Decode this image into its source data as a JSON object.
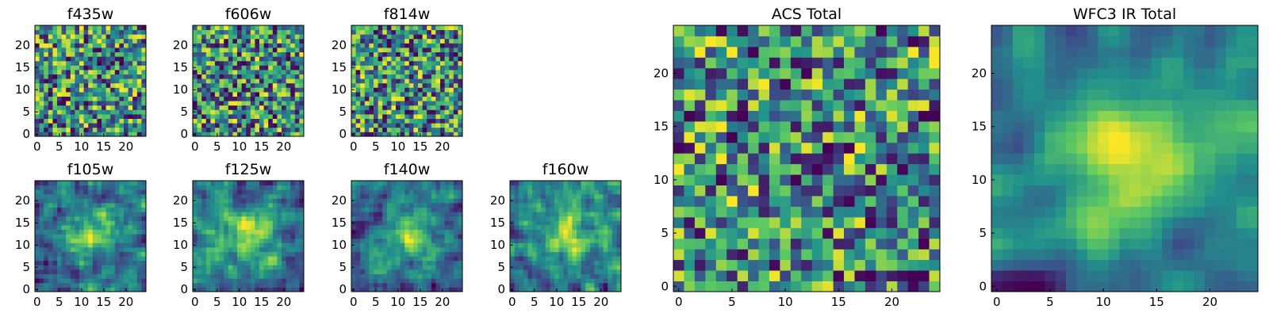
{
  "figure": {
    "background": "#ffffff",
    "colormap": [
      "#440154",
      "#3b528b",
      "#21918c",
      "#5ec962",
      "#fde725"
    ]
  },
  "chart_data": [
    {
      "type": "heatmap",
      "title": "f435w",
      "size": 25,
      "seed": 11,
      "smooth": 0,
      "xticks": [
        0,
        5,
        10,
        15,
        20
      ],
      "yticks": [
        0,
        5,
        10,
        15,
        20
      ],
      "xlim": [
        0,
        24
      ],
      "ylim": [
        0,
        24
      ]
    },
    {
      "type": "heatmap",
      "title": "f606w",
      "size": 25,
      "seed": 23,
      "smooth": 0,
      "xticks": [
        0,
        5,
        10,
        15,
        20
      ],
      "yticks": [
        0,
        5,
        10,
        15,
        20
      ],
      "xlim": [
        0,
        24
      ],
      "ylim": [
        0,
        24
      ]
    },
    {
      "type": "heatmap",
      "title": "f814w",
      "size": 25,
      "seed": 37,
      "smooth": 0,
      "xticks": [
        0,
        5,
        10,
        15,
        20
      ],
      "yticks": [
        0,
        5,
        10,
        15,
        20
      ],
      "xlim": [
        0,
        24
      ],
      "ylim": [
        0,
        24
      ]
    },
    {
      "type": "heatmap",
      "title": "f105w",
      "size": 25,
      "seed": 41,
      "smooth": 1,
      "xticks": [
        0,
        5,
        10,
        15,
        20
      ],
      "yticks": [
        0,
        5,
        10,
        15,
        20
      ],
      "xlim": [
        0,
        24
      ],
      "ylim": [
        0,
        24
      ]
    },
    {
      "type": "heatmap",
      "title": "f125w",
      "size": 25,
      "seed": 53,
      "smooth": 1,
      "xticks": [
        0,
        5,
        10,
        15,
        20
      ],
      "yticks": [
        0,
        5,
        10,
        15,
        20
      ],
      "xlim": [
        0,
        24
      ],
      "ylim": [
        0,
        24
      ]
    },
    {
      "type": "heatmap",
      "title": "f140w",
      "size": 25,
      "seed": 67,
      "smooth": 1,
      "xticks": [
        0,
        5,
        10,
        15,
        20
      ],
      "yticks": [
        0,
        5,
        10,
        15,
        20
      ],
      "xlim": [
        0,
        24
      ],
      "ylim": [
        0,
        24
      ]
    },
    {
      "type": "heatmap",
      "title": "f160w",
      "size": 25,
      "seed": 79,
      "smooth": 1,
      "xticks": [
        0,
        5,
        10,
        15,
        20
      ],
      "yticks": [
        0,
        5,
        10,
        15,
        20
      ],
      "xlim": [
        0,
        24
      ],
      "ylim": [
        0,
        24
      ]
    },
    {
      "type": "heatmap",
      "title": "ACS Total",
      "size": 25,
      "seed": 83,
      "smooth": 0,
      "xticks": [
        0,
        5,
        10,
        15,
        20
      ],
      "yticks": [
        0,
        5,
        10,
        15,
        20
      ],
      "xlim": [
        0,
        24
      ],
      "ylim": [
        0,
        24
      ]
    },
    {
      "type": "heatmap",
      "title": "WFC3 IR Total",
      "size": 25,
      "seed": 97,
      "smooth": 2,
      "xticks": [
        0,
        5,
        10,
        15,
        20
      ],
      "yticks": [
        0,
        5,
        10,
        15,
        20
      ],
      "xlim": [
        0,
        24
      ],
      "ylim": [
        0,
        24
      ]
    }
  ]
}
